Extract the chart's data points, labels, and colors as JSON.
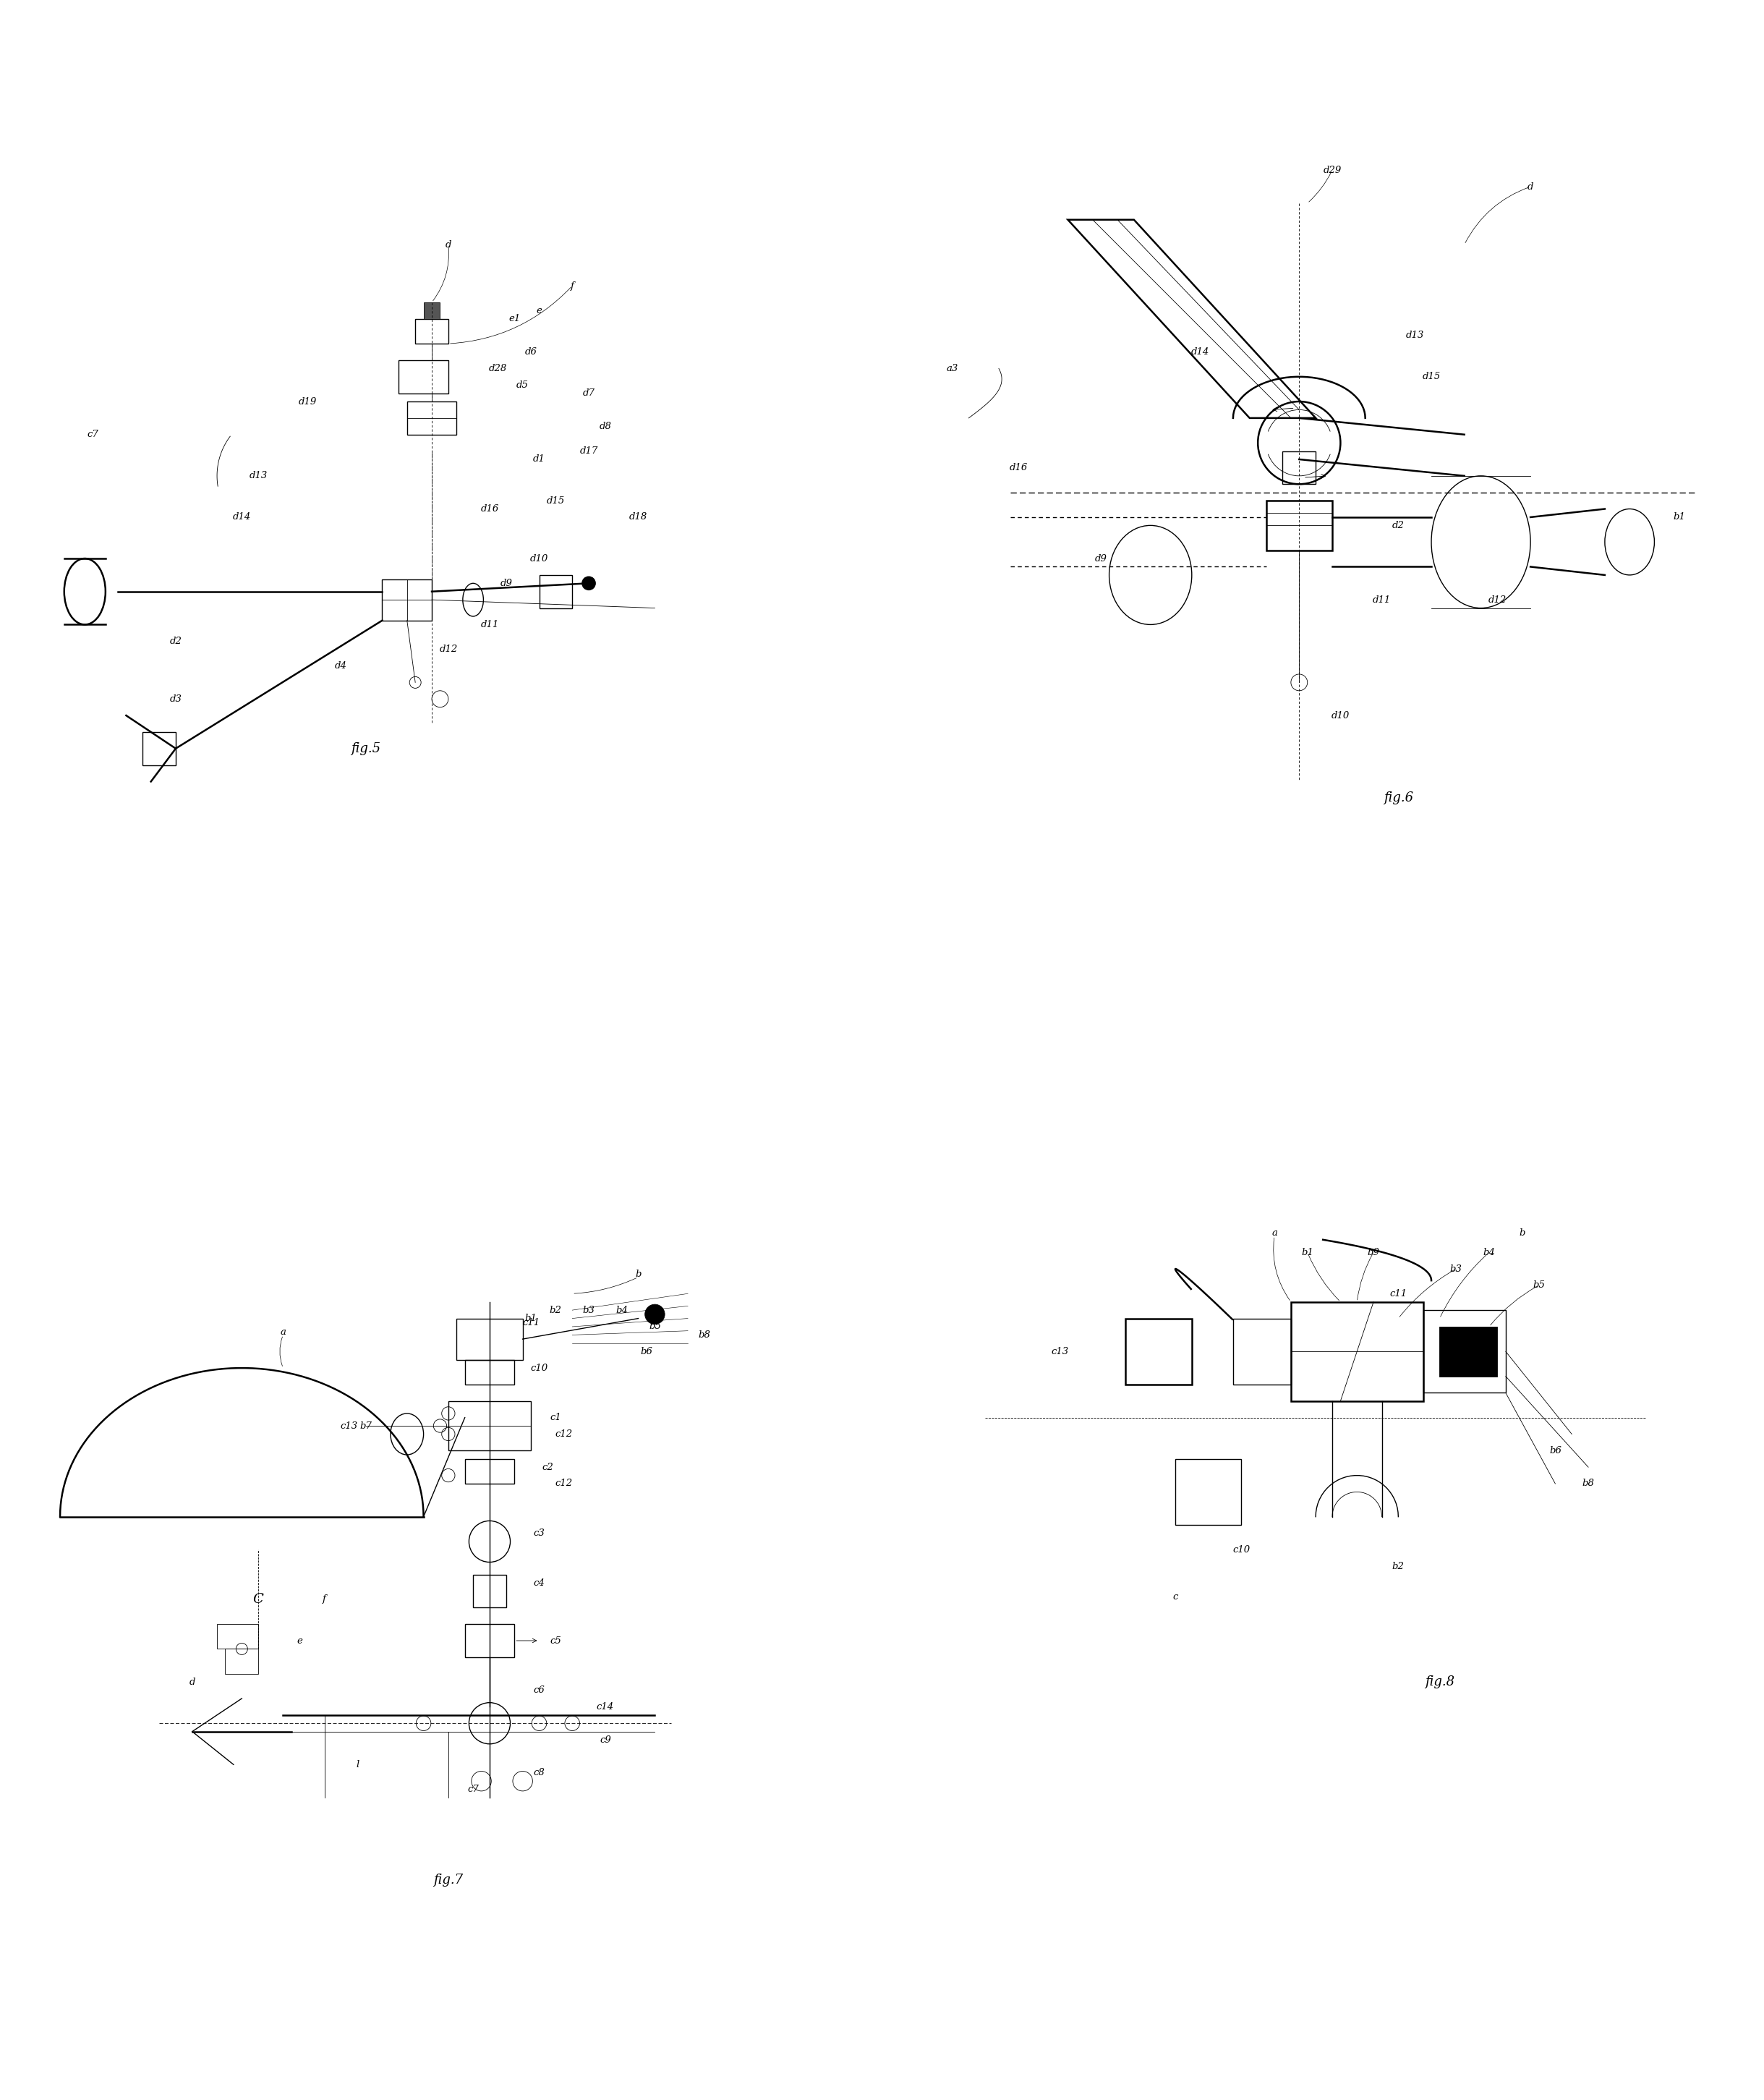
{
  "background_color": "#ffffff",
  "fig_width": 24.39,
  "fig_height": 29.03,
  "line_color": "#000000",
  "label_fontsize": 9.5,
  "caption_fontsize": 13,
  "fig5_caption": "fig.5",
  "fig6_caption": "fig.6",
  "fig7_caption": "fig.7",
  "fig8_caption": "fig.8"
}
